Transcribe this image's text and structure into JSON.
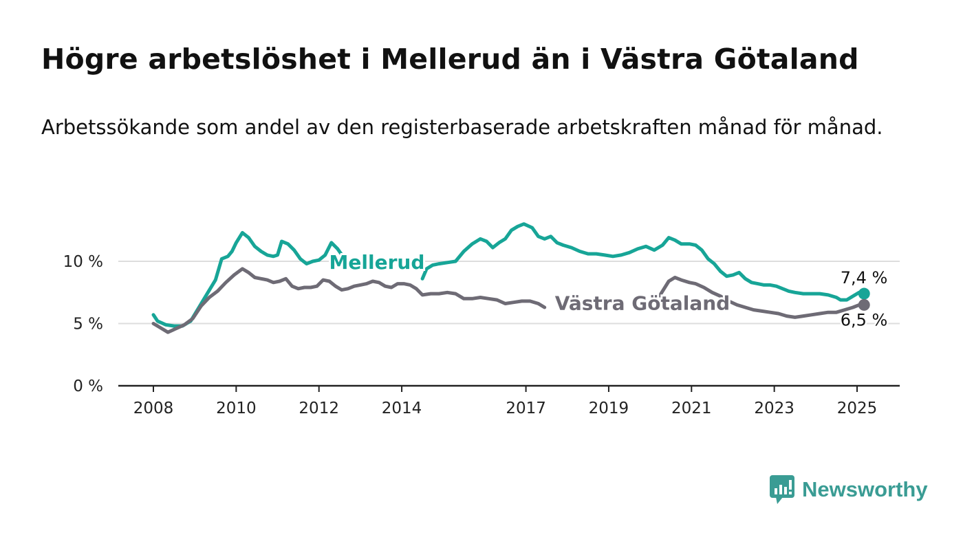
{
  "title": "Högre arbetslöshet i Mellerud än i Västra Götaland",
  "subtitle": "Arbetssökande som andel av den registerbaserade arbetskraften månad för månad.",
  "brand": {
    "name": "Newsworthy",
    "icon": "bar-chart-speech-bubble-icon"
  },
  "colors": {
    "mellerud": "#17a597",
    "vastra": "#6e6b75",
    "grid": "#dddddd",
    "axis": "#222222"
  },
  "chart_data": {
    "type": "line",
    "ylim": [
      0,
      14
    ],
    "y_ticks": [
      0,
      5,
      10
    ],
    "y_tick_labels": [
      "0 %",
      "5 %",
      "10 %"
    ],
    "x_ticks": [
      2008,
      2010,
      2012,
      2014,
      2017,
      2019,
      2021,
      2023,
      2025
    ],
    "x_tick_labels": [
      "2008",
      "2010",
      "2012",
      "2014",
      "2017",
      "2019",
      "2021",
      "2023",
      "2025"
    ],
    "grid": true,
    "end_labels": {
      "mellerud": "7,4 %",
      "vastra": "6,5 %"
    },
    "series": [
      {
        "name": "Mellerud",
        "key": "mellerud",
        "points": [
          [
            2008.0,
            5.7
          ],
          [
            2008.1,
            5.2
          ],
          [
            2008.3,
            4.9
          ],
          [
            2008.5,
            4.8
          ],
          [
            2008.7,
            4.8
          ],
          [
            2008.9,
            5.2
          ],
          [
            2009.1,
            6.3
          ],
          [
            2009.3,
            7.4
          ],
          [
            2009.5,
            8.5
          ],
          [
            2009.65,
            10.2
          ],
          [
            2009.8,
            10.4
          ],
          [
            2009.9,
            10.8
          ],
          [
            2010.0,
            11.5
          ],
          [
            2010.15,
            12.3
          ],
          [
            2010.3,
            11.9
          ],
          [
            2010.45,
            11.2
          ],
          [
            2010.6,
            10.8
          ],
          [
            2010.75,
            10.5
          ],
          [
            2010.9,
            10.4
          ],
          [
            2011.0,
            10.5
          ],
          [
            2011.1,
            11.6
          ],
          [
            2011.25,
            11.4
          ],
          [
            2011.4,
            10.9
          ],
          [
            2011.55,
            10.2
          ],
          [
            2011.7,
            9.8
          ],
          [
            2011.85,
            10.0
          ],
          [
            2012.0,
            10.1
          ],
          [
            2012.15,
            10.5
          ],
          [
            2012.3,
            11.5
          ],
          [
            2012.45,
            11.0
          ],
          [
            2012.6,
            10.3
          ],
          [
            2012.75,
            9.8
          ],
          [
            2012.85,
            9.4
          ],
          [
            2012.95,
            9.6
          ],
          null,
          [
            2014.5,
            8.6
          ],
          [
            2014.6,
            9.4
          ],
          [
            2014.75,
            9.7
          ],
          [
            2014.9,
            9.8
          ],
          [
            2015.1,
            9.9
          ],
          [
            2015.3,
            10.0
          ],
          [
            2015.5,
            10.8
          ],
          [
            2015.7,
            11.4
          ],
          [
            2015.9,
            11.8
          ],
          [
            2016.05,
            11.6
          ],
          [
            2016.2,
            11.1
          ],
          [
            2016.35,
            11.5
          ],
          [
            2016.5,
            11.8
          ],
          [
            2016.65,
            12.5
          ],
          [
            2016.8,
            12.8
          ],
          [
            2016.95,
            13.0
          ],
          [
            2017.15,
            12.7
          ],
          [
            2017.3,
            12.0
          ],
          [
            2017.45,
            11.8
          ],
          [
            2017.6,
            12.0
          ],
          [
            2017.75,
            11.5
          ],
          [
            2017.9,
            11.3
          ],
          [
            2018.1,
            11.1
          ],
          [
            2018.3,
            10.8
          ],
          [
            2018.5,
            10.6
          ],
          [
            2018.7,
            10.6
          ],
          [
            2018.9,
            10.5
          ],
          [
            2019.1,
            10.4
          ],
          [
            2019.3,
            10.5
          ],
          [
            2019.5,
            10.7
          ],
          [
            2019.7,
            11.0
          ],
          [
            2019.9,
            11.2
          ],
          [
            2020.1,
            10.9
          ],
          [
            2020.3,
            11.3
          ],
          [
            2020.45,
            11.9
          ],
          [
            2020.6,
            11.7
          ],
          [
            2020.75,
            11.4
          ],
          [
            2020.95,
            11.4
          ],
          [
            2021.1,
            11.3
          ],
          [
            2021.25,
            10.9
          ],
          [
            2021.4,
            10.2
          ],
          [
            2021.55,
            9.8
          ],
          [
            2021.7,
            9.2
          ],
          [
            2021.85,
            8.8
          ],
          [
            2022.0,
            8.9
          ],
          [
            2022.15,
            9.1
          ],
          [
            2022.3,
            8.6
          ],
          [
            2022.45,
            8.3
          ],
          [
            2022.6,
            8.2
          ],
          [
            2022.75,
            8.1
          ],
          [
            2022.9,
            8.1
          ],
          [
            2023.05,
            8.0
          ],
          [
            2023.2,
            7.8
          ],
          [
            2023.35,
            7.6
          ],
          [
            2023.5,
            7.5
          ],
          [
            2023.7,
            7.4
          ],
          [
            2023.9,
            7.4
          ],
          [
            2024.1,
            7.4
          ],
          [
            2024.3,
            7.3
          ],
          [
            2024.5,
            7.1
          ],
          [
            2024.6,
            6.9
          ],
          [
            2024.75,
            6.9
          ],
          [
            2024.9,
            7.2
          ],
          [
            2025.05,
            7.5
          ],
          [
            2025.17,
            7.4
          ]
        ]
      },
      {
        "name": "Västra Götaland",
        "key": "vastra",
        "points": [
          [
            2008.0,
            5.0
          ],
          [
            2008.15,
            4.7
          ],
          [
            2008.35,
            4.3
          ],
          [
            2008.55,
            4.6
          ],
          [
            2008.75,
            4.9
          ],
          [
            2008.95,
            5.4
          ],
          [
            2009.15,
            6.4
          ],
          [
            2009.35,
            7.1
          ],
          [
            2009.55,
            7.6
          ],
          [
            2009.75,
            8.3
          ],
          [
            2009.95,
            8.9
          ],
          [
            2010.15,
            9.4
          ],
          [
            2010.3,
            9.1
          ],
          [
            2010.45,
            8.7
          ],
          [
            2010.6,
            8.6
          ],
          [
            2010.75,
            8.5
          ],
          [
            2010.9,
            8.3
          ],
          [
            2011.05,
            8.4
          ],
          [
            2011.2,
            8.6
          ],
          [
            2011.35,
            8.0
          ],
          [
            2011.5,
            7.8
          ],
          [
            2011.65,
            7.9
          ],
          [
            2011.8,
            7.9
          ],
          [
            2011.95,
            8.0
          ],
          [
            2012.1,
            8.5
          ],
          [
            2012.25,
            8.4
          ],
          [
            2012.4,
            8.0
          ],
          [
            2012.55,
            7.7
          ],
          [
            2012.7,
            7.8
          ],
          [
            2012.85,
            8.0
          ],
          [
            2013.0,
            8.1
          ],
          [
            2013.15,
            8.2
          ],
          [
            2013.3,
            8.4
          ],
          [
            2013.45,
            8.3
          ],
          [
            2013.6,
            8.0
          ],
          [
            2013.75,
            7.9
          ],
          [
            2013.9,
            8.2
          ],
          [
            2014.05,
            8.2
          ],
          [
            2014.2,
            8.1
          ],
          [
            2014.35,
            7.8
          ],
          [
            2014.5,
            7.3
          ],
          [
            2014.7,
            7.4
          ],
          [
            2014.9,
            7.4
          ],
          [
            2015.1,
            7.5
          ],
          [
            2015.3,
            7.4
          ],
          [
            2015.5,
            7.0
          ],
          [
            2015.7,
            7.0
          ],
          [
            2015.9,
            7.1
          ],
          [
            2016.1,
            7.0
          ],
          [
            2016.3,
            6.9
          ],
          [
            2016.5,
            6.6
          ],
          [
            2016.7,
            6.7
          ],
          [
            2016.9,
            6.8
          ],
          [
            2017.1,
            6.8
          ],
          [
            2017.3,
            6.6
          ],
          [
            2017.45,
            6.3
          ],
          null,
          [
            2020.15,
            6.8
          ],
          [
            2020.3,
            7.6
          ],
          [
            2020.45,
            8.4
          ],
          [
            2020.6,
            8.7
          ],
          [
            2020.75,
            8.5
          ],
          [
            2020.95,
            8.3
          ],
          [
            2021.1,
            8.2
          ],
          [
            2021.3,
            7.9
          ],
          [
            2021.5,
            7.5
          ],
          [
            2021.7,
            7.2
          ],
          [
            2021.9,
            6.8
          ],
          [
            2022.1,
            6.5
          ],
          [
            2022.3,
            6.3
          ],
          [
            2022.5,
            6.1
          ],
          [
            2022.7,
            6.0
          ],
          [
            2022.9,
            5.9
          ],
          [
            2023.1,
            5.8
          ],
          [
            2023.3,
            5.6
          ],
          [
            2023.5,
            5.5
          ],
          [
            2023.7,
            5.6
          ],
          [
            2023.9,
            5.7
          ],
          [
            2024.1,
            5.8
          ],
          [
            2024.3,
            5.9
          ],
          [
            2024.5,
            5.9
          ],
          [
            2024.7,
            6.1
          ],
          [
            2024.9,
            6.3
          ],
          [
            2025.05,
            6.5
          ],
          [
            2025.17,
            6.5
          ]
        ]
      }
    ],
    "series_label_points": {
      "mellerud": [
        2013.4,
        9.4
      ],
      "vastra": [
        2017.7,
        6.1
      ]
    }
  }
}
